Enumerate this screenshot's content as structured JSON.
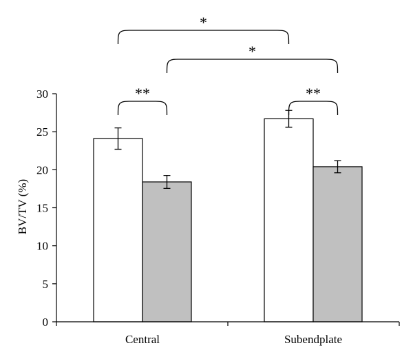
{
  "chart_data": {
    "type": "bar",
    "ylabel": "BV/TV (%)",
    "ylim": [
      0,
      30
    ],
    "yticks": [
      0,
      5,
      10,
      15,
      20,
      25,
      30
    ],
    "categories": [
      "Central",
      "Subendplate"
    ],
    "series": [
      {
        "values": [
          24.1,
          26.7
        ],
        "errors": [
          1.4,
          1.1
        ],
        "fill": "#ffffff"
      },
      {
        "values": [
          18.4,
          20.4
        ],
        "errors": [
          0.85,
          0.8
        ],
        "fill": "#c0c0c0"
      }
    ],
    "significance": [
      {
        "label": "**",
        "from": [
          0,
          0
        ],
        "to": [
          0,
          1
        ],
        "level": 1
      },
      {
        "label": "**",
        "from": [
          1,
          0
        ],
        "to": [
          1,
          1
        ],
        "level": 1
      },
      {
        "label": "*",
        "from": [
          0,
          1
        ],
        "to": [
          1,
          1
        ],
        "level": 2
      },
      {
        "label": "*",
        "from": [
          0,
          0
        ],
        "to": [
          1,
          0
        ],
        "level": 3
      }
    ],
    "grid": false,
    "legend": "none"
  }
}
